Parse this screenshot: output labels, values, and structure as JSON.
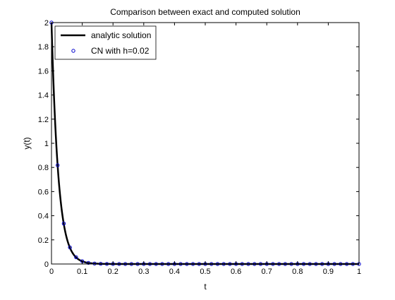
{
  "chart_data": {
    "type": "line",
    "title": "Comparison between exact and computed solution",
    "xlabel": "t",
    "ylabel": "y(t)",
    "xlim": [
      0,
      1
    ],
    "ylim": [
      0,
      2
    ],
    "grid": false,
    "legend_position": "top-left",
    "x_ticks": [
      0,
      0.1,
      0.2,
      0.3,
      0.4,
      0.5,
      0.6,
      0.7,
      0.8,
      0.9,
      1
    ],
    "x_tick_labels": [
      "0",
      "0.1",
      "0.2",
      "0.3",
      "0.4",
      "0.5",
      "0.6",
      "0.7",
      "0.8",
      "0.9",
      "1"
    ],
    "y_ticks": [
      0,
      0.2,
      0.4,
      0.6,
      0.8,
      1,
      1.2,
      1.4,
      1.6,
      1.8,
      2
    ],
    "y_tick_labels": [
      "0",
      "0.2",
      "0.4",
      "0.6",
      "0.8",
      "1",
      "1.2",
      "1.4",
      "1.6",
      "1.8",
      "2"
    ],
    "series": [
      {
        "name": "analytic solution",
        "style": "solid-line",
        "color": "#000000",
        "formula": "y = 2*exp(-45*t)",
        "x_start": 0,
        "x_end": 1,
        "sample_step": 0.002
      },
      {
        "name": "CN with h=0.02",
        "style": "circle-markers",
        "color": "#0000cc",
        "x": [
          0,
          0.02,
          0.04,
          0.06,
          0.08,
          0.1,
          0.12,
          0.14,
          0.16,
          0.18,
          0.2,
          0.22,
          0.24,
          0.26,
          0.28,
          0.3,
          0.32,
          0.34,
          0.36,
          0.38,
          0.4,
          0.42,
          0.44,
          0.46,
          0.48,
          0.5,
          0.52,
          0.54,
          0.56,
          0.58,
          0.6,
          0.62,
          0.64,
          0.66,
          0.68,
          0.7,
          0.72,
          0.74,
          0.76,
          0.78,
          0.8,
          0.82,
          0.84,
          0.86,
          0.88,
          0.9,
          0.92,
          0.94,
          0.96,
          0.98,
          1
        ],
        "values": [
          2,
          0.818,
          0.335,
          0.137,
          0.056,
          0.023,
          0.0094,
          0.0038,
          0.0016,
          0.0006,
          0.0003,
          0.0001,
          0,
          0,
          0,
          0,
          0,
          0,
          0,
          0,
          0,
          0,
          0,
          0,
          0,
          0,
          0,
          0,
          0,
          0,
          0,
          0,
          0,
          0,
          0,
          0,
          0,
          0,
          0,
          0,
          0,
          0,
          0,
          0,
          0,
          0,
          0,
          0,
          0,
          0,
          0
        ]
      }
    ]
  }
}
